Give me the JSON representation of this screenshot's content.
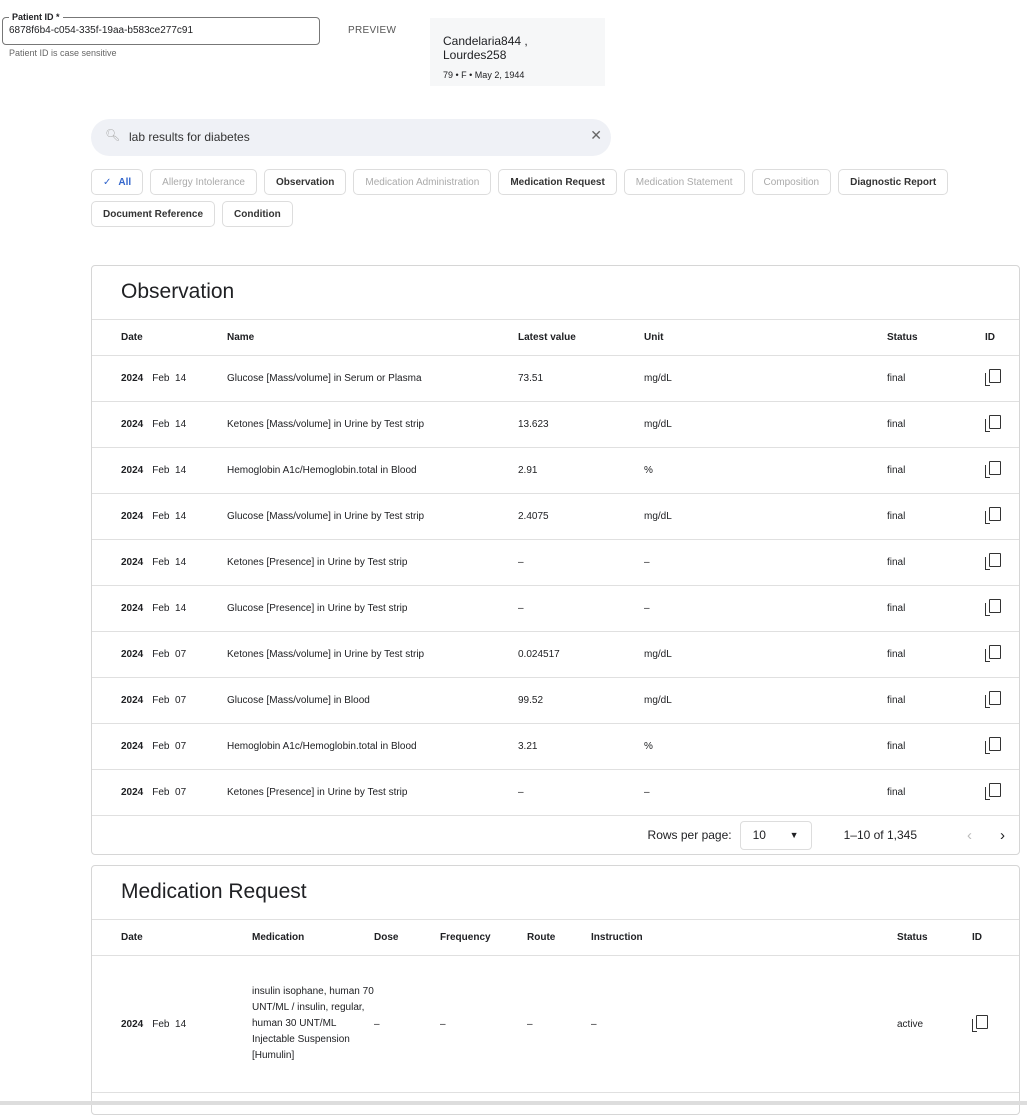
{
  "patient": {
    "id_label": "Patient ID *",
    "id_value": "6878f6b4-c054-335f-19aa-b583ce277c91",
    "hint": "Patient ID is case sensitive",
    "preview_label": "PREVIEW",
    "name": "Candelaria844 , Lourdes258",
    "details": "79 • F • May 2, 1944"
  },
  "search": {
    "value": "lab results for diabetes",
    "icon": "search-icon",
    "clear_icon": "close-icon"
  },
  "chips": [
    {
      "label": "All",
      "state": "selected"
    },
    {
      "label": "Allergy Intolerance",
      "state": "disabled"
    },
    {
      "label": "Observation",
      "state": "enabled"
    },
    {
      "label": "Medication Administration",
      "state": "disabled"
    },
    {
      "label": "Medication Request",
      "state": "enabled"
    },
    {
      "label": "Medication Statement",
      "state": "disabled"
    },
    {
      "label": "Composition",
      "state": "disabled"
    },
    {
      "label": "Diagnostic Report",
      "state": "enabled"
    },
    {
      "label": "Document Reference",
      "state": "enabled"
    },
    {
      "label": "Condition",
      "state": "enabled"
    }
  ],
  "observation": {
    "title": "Observation",
    "headers": [
      "Date",
      "Name",
      "Latest value",
      "Unit",
      "Status",
      "ID"
    ],
    "rows": [
      {
        "year": "2024",
        "day": "Feb  14",
        "name": "Glucose [Mass/volume] in Serum or Plasma",
        "value": "73.51",
        "unit": "mg/dL",
        "status": "final"
      },
      {
        "year": "2024",
        "day": "Feb  14",
        "name": "Ketones [Mass/volume] in Urine by Test strip",
        "value": "13.623",
        "unit": "mg/dL",
        "status": "final"
      },
      {
        "year": "2024",
        "day": "Feb  14",
        "name": "Hemoglobin A1c/Hemoglobin.total in Blood",
        "value": "2.91",
        "unit": "%",
        "status": "final"
      },
      {
        "year": "2024",
        "day": "Feb  14",
        "name": "Glucose [Mass/volume] in Urine by Test strip",
        "value": "2.4075",
        "unit": "mg/dL",
        "status": "final"
      },
      {
        "year": "2024",
        "day": "Feb  14",
        "name": "Ketones [Presence] in Urine by Test strip",
        "value": "–",
        "unit": "–",
        "status": "final"
      },
      {
        "year": "2024",
        "day": "Feb  14",
        "name": "Glucose [Presence] in Urine by Test strip",
        "value": "–",
        "unit": "–",
        "status": "final"
      },
      {
        "year": "2024",
        "day": "Feb  07",
        "name": "Ketones [Mass/volume] in Urine by Test strip",
        "value": "0.024517",
        "unit": "mg/dL",
        "status": "final"
      },
      {
        "year": "2024",
        "day": "Feb  07",
        "name": "Glucose [Mass/volume] in Blood",
        "value": "99.52",
        "unit": "mg/dL",
        "status": "final"
      },
      {
        "year": "2024",
        "day": "Feb  07",
        "name": "Hemoglobin A1c/Hemoglobin.total in Blood",
        "value": "3.21",
        "unit": "%",
        "status": "final"
      },
      {
        "year": "2024",
        "day": "Feb  07",
        "name": "Ketones [Presence] in Urine by Test strip",
        "value": "–",
        "unit": "–",
        "status": "final"
      }
    ],
    "pagination": {
      "rows_label": "Rows per page:",
      "rows_value": "10",
      "range": "1–10 of 1,345"
    }
  },
  "medication_request": {
    "title": "Medication Request",
    "headers": [
      "Date",
      "Medication",
      "Dose",
      "Frequency",
      "Route",
      "Instruction",
      "Status",
      "ID"
    ],
    "rows": [
      {
        "year": "2024",
        "day": "Feb  14",
        "medication": "insulin isophane, human 70 UNT/ML / insulin, regular, human 30 UNT/ML Injectable Suspension [Humulin]",
        "dose": "–",
        "frequency": "–",
        "route": "–",
        "instruction": "–",
        "status": "active"
      }
    ]
  }
}
